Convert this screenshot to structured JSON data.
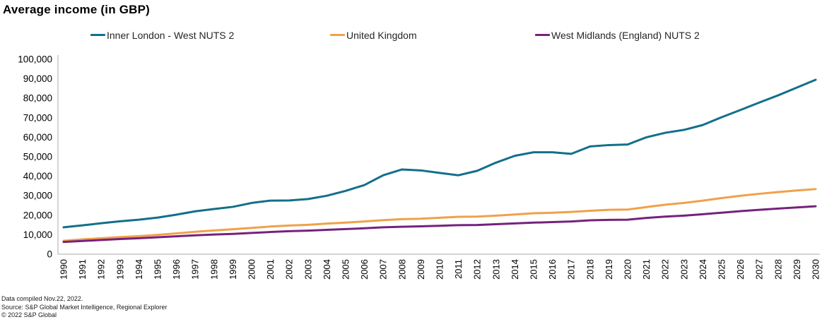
{
  "title": "Average income (in GBP)",
  "footnotes": [
    "Data compiled Nov.22, 2022.",
    "Source: S&P Global Market Intelligence, Regional Explorer",
    "© 2022 S&P Global"
  ],
  "chart_data": {
    "type": "line",
    "title": "Average income (in GBP)",
    "xlabel": "",
    "ylabel": "",
    "ylim": [
      0,
      100000
    ],
    "y_tick_step": 10000,
    "grid": false,
    "legend_position": "top",
    "axis_color": "#ababab",
    "x": [
      1990,
      1991,
      1992,
      1993,
      1994,
      1995,
      1996,
      1997,
      1998,
      1999,
      2000,
      2001,
      2002,
      2003,
      2004,
      2005,
      2006,
      2007,
      2008,
      2009,
      2010,
      2011,
      2012,
      2013,
      2014,
      2015,
      2016,
      2017,
      2018,
      2019,
      2020,
      2021,
      2022,
      2023,
      2024,
      2025,
      2026,
      2027,
      2028,
      2029,
      2030
    ],
    "series": [
      {
        "name": "Inner London - West NUTS 2",
        "color": "#136f8a",
        "values": [
          13800,
          14800,
          15900,
          16900,
          17700,
          18800,
          20300,
          22000,
          23200,
          24300,
          26300,
          27500,
          27600,
          28300,
          30000,
          32500,
          35500,
          40500,
          43500,
          43000,
          41700,
          40500,
          42800,
          47000,
          50500,
          52300,
          52300,
          51500,
          55300,
          56000,
          56300,
          60000,
          62300,
          63800,
          66300,
          70300,
          74000,
          77800,
          81500,
          85500,
          89500
        ]
      },
      {
        "name": "United Kingdom",
        "color": "#f0a14b",
        "values": [
          6900,
          7600,
          8200,
          8800,
          9300,
          9900,
          10700,
          11500,
          12200,
          12800,
          13500,
          14200,
          14700,
          15100,
          15700,
          16200,
          16800,
          17500,
          18000,
          18200,
          18700,
          19200,
          19300,
          19800,
          20400,
          21000,
          21300,
          21700,
          22300,
          22800,
          22900,
          24200,
          25400,
          26300,
          27500,
          28800,
          30000,
          31000,
          31900,
          32700,
          33400
        ]
      },
      {
        "name": "West Midlands (England) NUTS 2",
        "color": "#75227d",
        "values": [
          6300,
          6800,
          7300,
          7800,
          8200,
          8700,
          9200,
          9700,
          10100,
          10400,
          10900,
          11400,
          11800,
          12100,
          12500,
          12900,
          13300,
          13800,
          14100,
          14300,
          14600,
          14900,
          15000,
          15400,
          15800,
          16200,
          16500,
          16800,
          17400,
          17600,
          17700,
          18600,
          19300,
          19800,
          20500,
          21300,
          22100,
          22800,
          23400,
          24000,
          24600
        ]
      }
    ]
  }
}
